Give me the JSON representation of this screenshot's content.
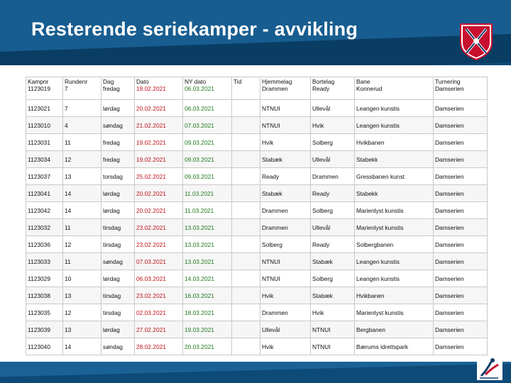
{
  "slide": {
    "title": "Resterende seriekamper - avvikling"
  },
  "table": {
    "headers": [
      "Kampnr",
      "Rundenr",
      "Dag",
      "Dato",
      "NY dato",
      "Tid",
      "Hjemmelag",
      "Bortelag",
      "Bane",
      "Turnering"
    ],
    "first_row": [
      "1123019",
      "7",
      "fredag",
      "19.02.2021",
      "06.03.2021",
      "",
      "Drammen",
      "Ready",
      "Konnerud",
      "Damserien"
    ],
    "rows": [
      [
        "1123021",
        "7",
        "lørdag",
        "20.02.2021",
        "06.03.2021",
        "",
        "NTNUI",
        "Ullevål",
        "Leangen kunstis",
        "Damserien"
      ],
      [
        "1123010",
        "4",
        "søndag",
        "21.02.2021",
        "07.03.2021",
        "",
        "NTNUI",
        "Hvik",
        "Leangen kunstis",
        "Damserien"
      ],
      [
        "1123031",
        "11",
        "fredag",
        "19.02.2021",
        "09.03.2021",
        "",
        "Hvik",
        "Solberg",
        "Hvikbanen",
        "Damserien"
      ],
      [
        "1123034",
        "12",
        "fredag",
        "19.02.2021",
        "09.03.2021",
        "",
        "Stabæk",
        "Ullevål",
        "Stabekk",
        "Damserien"
      ],
      [
        "1123037",
        "13",
        "torsdag",
        "25.02.2021",
        "09.03.2021",
        "",
        "Ready",
        "Drammen",
        "Gressbanen kunst",
        "Damserien"
      ],
      [
        "1123041",
        "14",
        "lørdag",
        "20.02.2021",
        "11.03.2021",
        "",
        "Stabæk",
        "Ready",
        "Stabekk",
        "Damserien"
      ],
      [
        "1123042",
        "14",
        "lørdag",
        "20.02.2021",
        "11.03.2021",
        "",
        "Drammen",
        "Solberg",
        "Marienlyst kunstis",
        "Damserien"
      ],
      [
        "1123032",
        "11",
        "tirsdag",
        "23.02.2021",
        "13.03.2021",
        "",
        "Drammen",
        "Ullevål",
        "Marienlyst kunstis",
        "Damserien"
      ],
      [
        "1123036",
        "12",
        "tirsdag",
        "23.02.2021",
        "13.03.2021",
        "",
        "Solberg",
        "Ready",
        "Solbergbanen",
        "Damserien"
      ],
      [
        "1123033",
        "11",
        "søndag",
        "07.03.2021",
        "13.03.2021",
        "",
        "NTNUI",
        "Stabæk",
        "Leangen kunstis",
        "Damserien"
      ],
      [
        "1123029",
        "10",
        "lørdag",
        "06.03.2021",
        "14.03.2021",
        "",
        "NTNUI",
        "Solberg",
        "Leangen kunstis",
        "Damserien"
      ],
      [
        "1123038",
        "13",
        "tirsdag",
        "23.02.2021",
        "16.03.2021",
        "",
        "Hvik",
        "Stabæk",
        "Hvikbanen",
        "Damserien"
      ],
      [
        "1123035",
        "12",
        "tirsdag",
        "02.03.2021",
        "18.03.2021",
        "",
        "Drammen",
        "Hvik",
        "Marienlyst kunstis",
        "Damserien"
      ],
      [
        "1123039",
        "13",
        "lørdag",
        "27.02.2021",
        "19.03.2021",
        "",
        "Ullevål",
        "NTNUI",
        "Bergbanen",
        "Damserien"
      ],
      [
        "1123040",
        "14",
        "søndag",
        "28.02.2021",
        "20.03.2021",
        "",
        "Hvik",
        "NTNUI",
        "Bærums idrettspark",
        "Damserien"
      ]
    ]
  },
  "colors": {
    "header_bg": "#0d4a78",
    "old_date": "#c0141a",
    "new_date": "#1d7a1d"
  },
  "icons": {
    "top_logo": "federation-shield-logo",
    "bottom_logo": "skater-logo"
  }
}
